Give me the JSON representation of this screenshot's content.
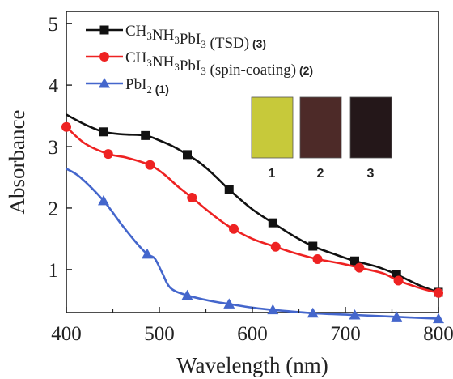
{
  "chart_data": {
    "type": "line",
    "xlabel": "Wavelength (nm)",
    "ylabel": "Absorbance",
    "xlim": [
      400,
      800
    ],
    "ylim": [
      0.3,
      5.2
    ],
    "xticks": [
      "400",
      "500",
      "600",
      "700",
      "800"
    ],
    "yticks": [
      "1",
      "2",
      "3",
      "4",
      "5"
    ],
    "grid": false,
    "legend": "top-left",
    "series": [
      {
        "name_main": "CH3NH3PbI3 (TSD)",
        "name_num": "(3)",
        "color": "#111111",
        "marker": "square",
        "x": [
          400,
          420,
          440,
          460,
          485,
          500,
          515,
          530,
          545,
          560,
          575,
          600,
          622,
          645,
          665,
          690,
          710,
          735,
          755,
          780,
          800
        ],
        "y": [
          3.52,
          3.36,
          3.24,
          3.2,
          3.18,
          3.1,
          3.0,
          2.87,
          2.72,
          2.52,
          2.3,
          1.98,
          1.76,
          1.54,
          1.38,
          1.24,
          1.14,
          1.04,
          0.92,
          0.74,
          0.63
        ],
        "marker_x": [
          440,
          485,
          530,
          575,
          622,
          665,
          710,
          755,
          800
        ]
      },
      {
        "name_main": "CH3NH3PbI3 (spin-coating)",
        "name_num": "(2)",
        "color": "#ee2222",
        "marker": "circle",
        "x": [
          400,
          420,
          445,
          465,
          490,
          505,
          520,
          535,
          555,
          575,
          600,
          625,
          645,
          670,
          695,
          715,
          740,
          757,
          780,
          800
        ],
        "y": [
          3.32,
          3.05,
          2.88,
          2.82,
          2.7,
          2.55,
          2.35,
          2.17,
          1.92,
          1.7,
          1.5,
          1.37,
          1.27,
          1.17,
          1.1,
          1.03,
          0.94,
          0.82,
          0.7,
          0.62
        ],
        "marker_x": [
          400,
          445,
          490,
          535,
          580,
          625,
          670,
          715,
          757,
          800
        ]
      },
      {
        "name_main": "PbI2",
        "name_num": "(1)",
        "color": "#4466cc",
        "marker": "triangle",
        "x": [
          400,
          415,
          440,
          460,
          475,
          487,
          495,
          503,
          512,
          530,
          555,
          575,
          600,
          625,
          665,
          710,
          755,
          800
        ],
        "y": [
          2.64,
          2.5,
          2.12,
          1.72,
          1.44,
          1.25,
          1.18,
          0.95,
          0.7,
          0.58,
          0.49,
          0.44,
          0.38,
          0.34,
          0.29,
          0.26,
          0.23,
          0.2
        ],
        "marker_x": [
          440,
          487,
          530,
          575,
          622,
          665,
          710,
          755,
          800
        ]
      }
    ],
    "inset_samples": [
      {
        "label": "1",
        "color": "#c7c93a"
      },
      {
        "label": "2",
        "color": "#4d2a28"
      },
      {
        "label": "3",
        "color": "#241719"
      }
    ]
  }
}
